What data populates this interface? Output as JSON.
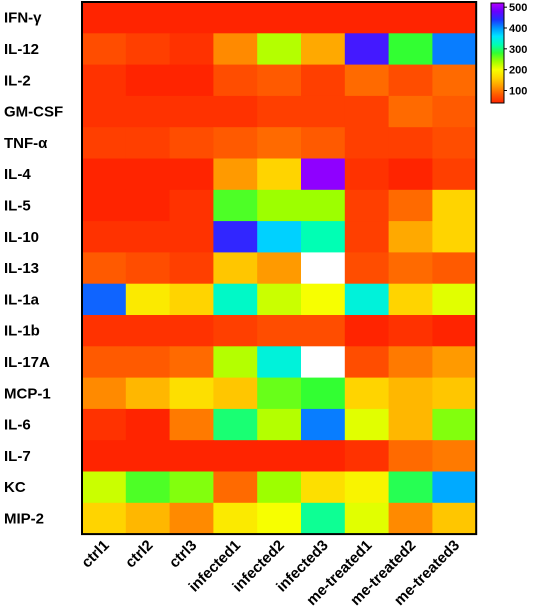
{
  "chart_data": {
    "type": "heatmap",
    "rows": [
      "IFN-γ",
      "IL-12",
      "IL-2",
      "GM-CSF",
      "TNF-α",
      "IL-4",
      "IL-5",
      "IL-10",
      "IL-13",
      "IL-1a",
      "IL-1b",
      "IL-17A",
      "MCP-1",
      "IL-6",
      "IL-7",
      "KC",
      "MIP-2"
    ],
    "columns": [
      "ctrl1",
      "ctrl2",
      "ctrl3",
      "infected1",
      "infected2",
      "infected3",
      "me-treated1",
      "me-treated2",
      "me-treated3"
    ],
    "values": [
      [
        40,
        40,
        40,
        40,
        40,
        40,
        40,
        40,
        40
      ],
      [
        70,
        60,
        50,
        110,
        230,
        130,
        460,
        280,
        410
      ],
      [
        50,
        40,
        40,
        70,
        80,
        60,
        90,
        70,
        90
      ],
      [
        50,
        50,
        50,
        50,
        60,
        60,
        60,
        90,
        80
      ],
      [
        60,
        60,
        70,
        80,
        90,
        80,
        60,
        60,
        70
      ],
      [
        40,
        40,
        40,
        120,
        160,
        500,
        50,
        40,
        60
      ],
      [
        40,
        40,
        50,
        270,
        240,
        240,
        60,
        90,
        160
      ],
      [
        50,
        50,
        50,
        450,
        370,
        320,
        60,
        130,
        160
      ],
      [
        80,
        70,
        60,
        150,
        120,
        null,
        70,
        90,
        80
      ],
      [
        420,
        180,
        160,
        330,
        220,
        200,
        340,
        160,
        210
      ],
      [
        50,
        50,
        50,
        60,
        70,
        70,
        40,
        50,
        40
      ],
      [
        80,
        80,
        90,
        230,
        340,
        null,
        70,
        100,
        120
      ],
      [
        110,
        140,
        170,
        150,
        260,
        280,
        160,
        140,
        150
      ],
      [
        50,
        40,
        100,
        300,
        230,
        410,
        210,
        140,
        250
      ],
      [
        40,
        40,
        40,
        40,
        40,
        40,
        50,
        90,
        100
      ],
      [
        220,
        270,
        250,
        90,
        240,
        170,
        190,
        290,
        390
      ],
      [
        160,
        140,
        110,
        180,
        200,
        310,
        210,
        110,
        150
      ]
    ],
    "missing_color": "#ffffff",
    "colorbar": {
      "min": 40,
      "max": 520,
      "ticks": [
        500,
        400,
        300,
        200,
        100
      ],
      "colors": [
        "#ff2400",
        "#ff5a00",
        "#ff9a00",
        "#ffd400",
        "#f7ff00",
        "#9dff00",
        "#32ff32",
        "#00ffb4",
        "#00e5ff",
        "#0096ff",
        "#1e32ff",
        "#6a00ff",
        "#b400ff"
      ]
    },
    "title": "",
    "xlabel": "",
    "ylabel": ""
  }
}
